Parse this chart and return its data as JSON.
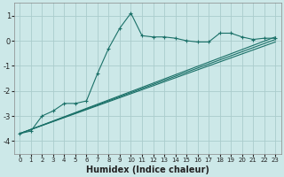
{
  "xlabel": "Humidex (Indice chaleur)",
  "ylabel": "",
  "bg_color": "#cce8e8",
  "grid_color": "#aacccc",
  "line_color": "#1a7068",
  "xlim": [
    -0.5,
    23.5
  ],
  "ylim": [
    -4.5,
    1.5
  ],
  "yticks": [
    -4,
    -3,
    -2,
    -1,
    0,
    1
  ],
  "xticks": [
    0,
    1,
    2,
    3,
    4,
    5,
    6,
    7,
    8,
    9,
    10,
    11,
    12,
    13,
    14,
    15,
    16,
    17,
    18,
    19,
    20,
    21,
    22,
    23
  ],
  "series": [
    {
      "x": [
        0,
        1,
        2,
        3,
        4,
        5,
        6,
        7,
        8,
        9,
        10,
        11,
        12,
        13,
        14,
        15,
        16,
        17,
        18,
        19,
        20,
        21,
        22,
        23
      ],
      "y": [
        -3.7,
        -3.6,
        -3.0,
        -2.8,
        -2.5,
        -2.5,
        -2.4,
        -1.3,
        -0.3,
        0.5,
        1.1,
        0.2,
        0.15,
        0.15,
        0.1,
        0.0,
        -0.05,
        -0.05,
        0.3,
        0.3,
        0.15,
        0.05,
        0.1,
        0.1
      ],
      "has_marker": true
    },
    {
      "x": [
        0,
        23
      ],
      "y": [
        -3.7,
        0.15
      ],
      "has_marker": false
    },
    {
      "x": [
        0,
        23
      ],
      "y": [
        -3.7,
        0.05
      ],
      "has_marker": false
    },
    {
      "x": [
        0,
        23
      ],
      "y": [
        -3.7,
        -0.05
      ],
      "has_marker": false
    }
  ],
  "xlabel_fontsize": 7,
  "xlabel_fontweight": "bold",
  "tick_fontsize": 6,
  "xtick_fontsize": 5,
  "figsize": [
    3.2,
    2.0
  ],
  "dpi": 100
}
